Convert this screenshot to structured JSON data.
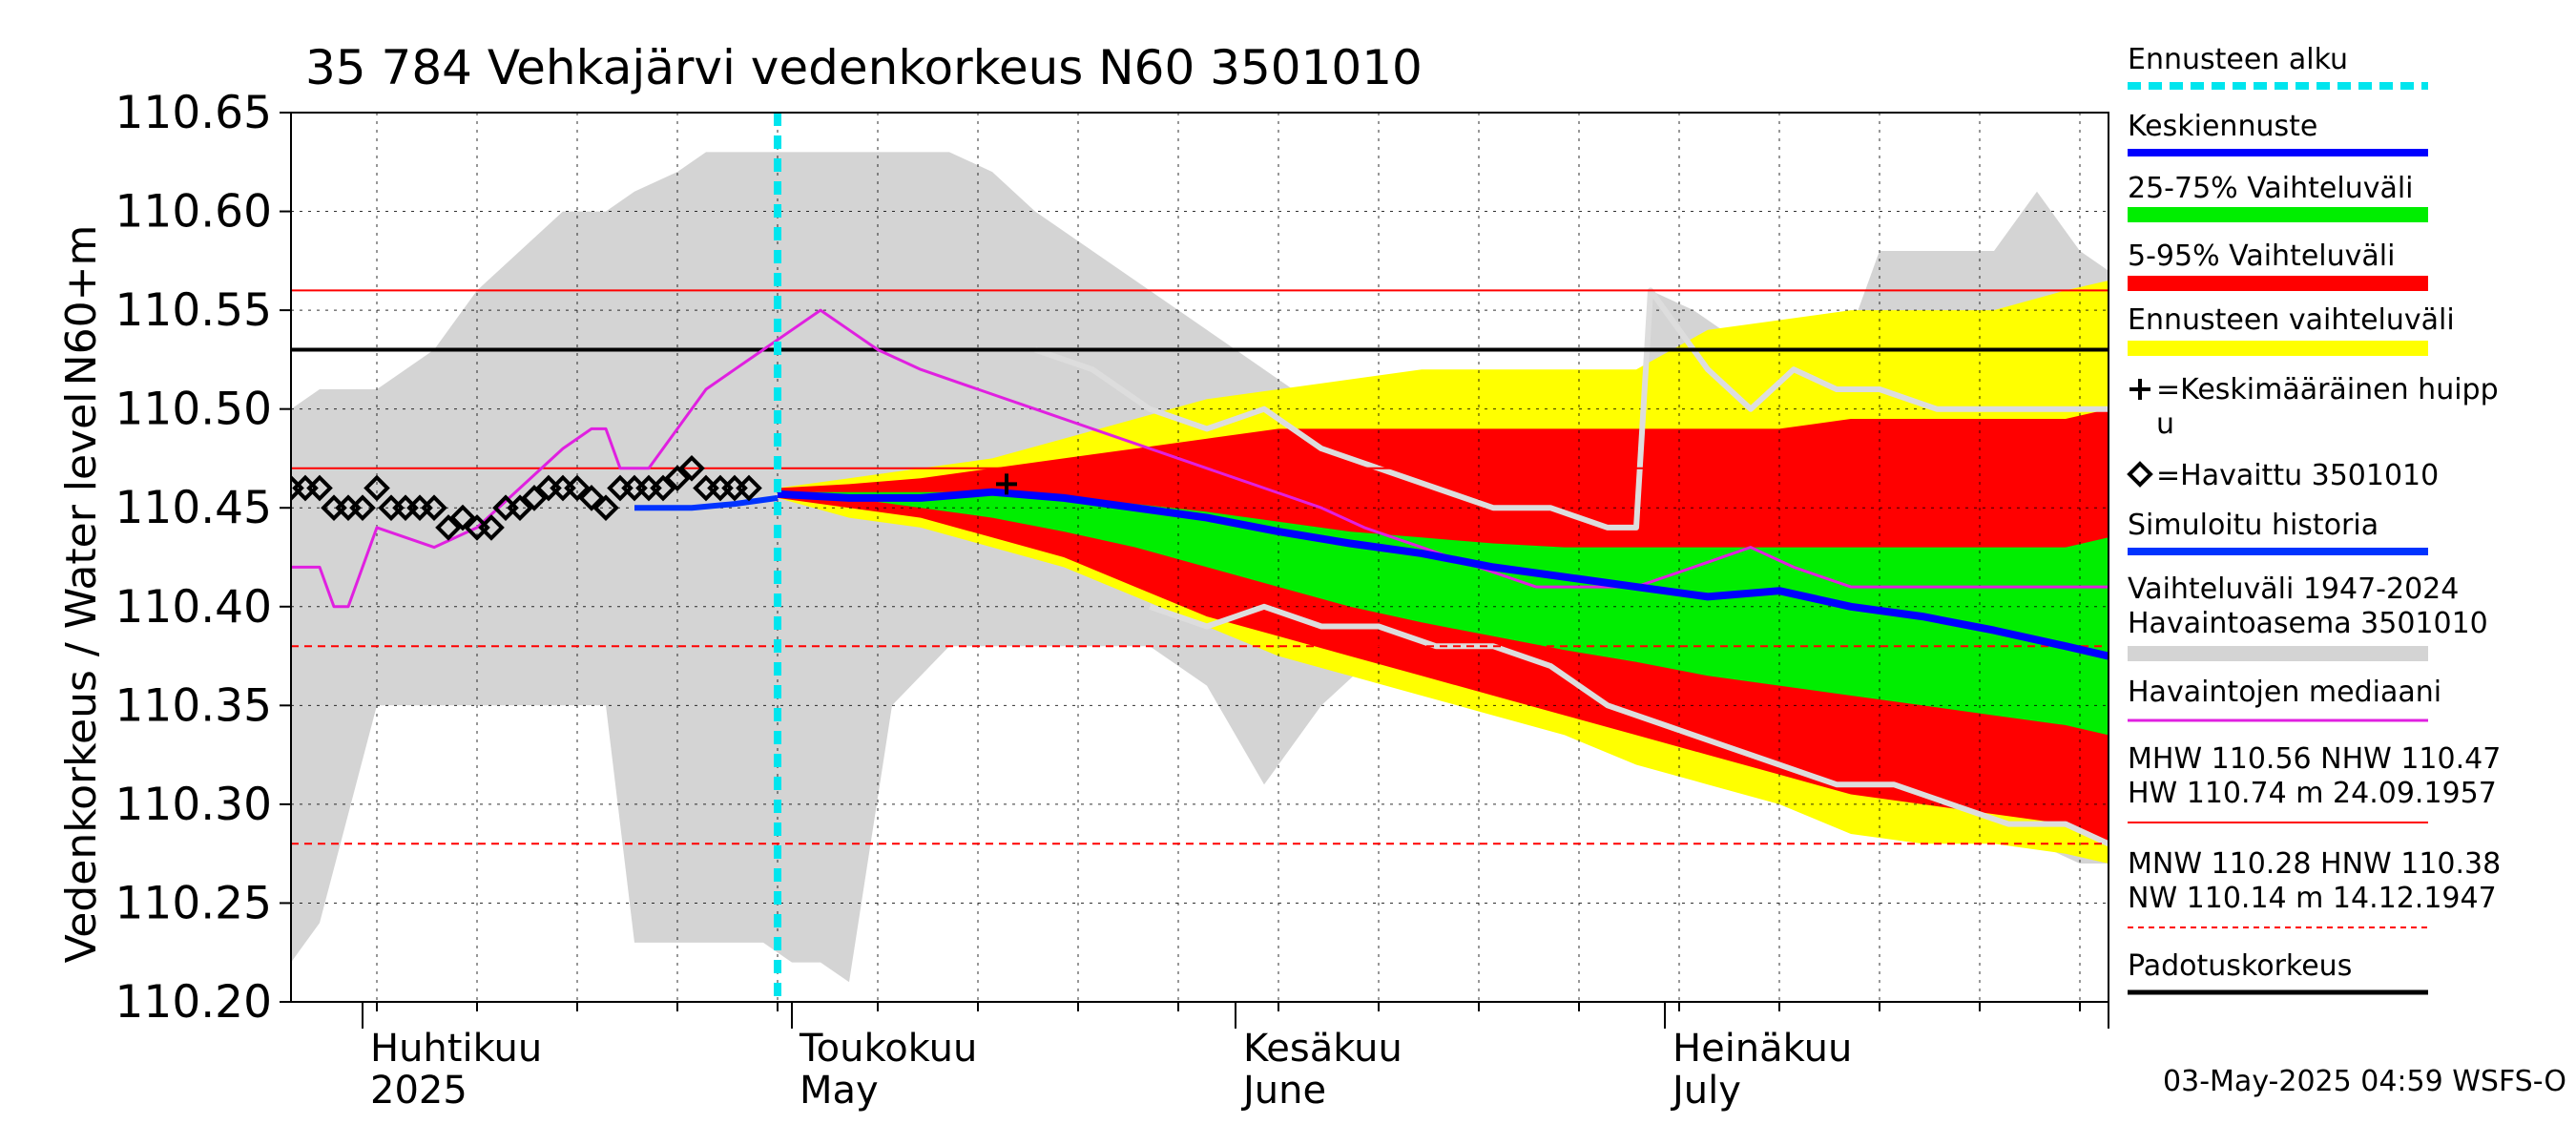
{
  "chart_data": {
    "type": "line",
    "title": "35 784 Vehkajärvi vedenkorkeus N60 3501010",
    "ylabel_top": "N60+m",
    "ylabel": "Vedenkorkeus / Water level",
    "ylim": [
      110.2,
      110.65
    ],
    "yticks": [
      110.2,
      110.25,
      110.3,
      110.35,
      110.4,
      110.45,
      110.5,
      110.55,
      110.6,
      110.65
    ],
    "ytick_labels": [
      "110.20",
      "110.25",
      "110.30",
      "110.35",
      "110.40",
      "110.45",
      "110.50",
      "110.55",
      "110.60",
      "110.65"
    ],
    "xlim": [
      "2025-03-27",
      "2025-08-01"
    ],
    "month_ticks": [
      "2025-04-01",
      "2025-05-01",
      "2025-06-01",
      "2025-07-01",
      "2025-08-01"
    ],
    "month_labels": [
      {
        "date": "2025-04-01",
        "fi": "Huhtikuu",
        "en": "2025"
      },
      {
        "date": "2025-05-01",
        "fi": "Toukokuu",
        "en": "May"
      },
      {
        "date": "2025-06-01",
        "fi": "Kesäkuu",
        "en": "June"
      },
      {
        "date": "2025-07-01",
        "fi": "Heinäkuu",
        "en": "July"
      }
    ],
    "grid": true,
    "legend_position": "right",
    "forecast_start": "2025-04-30",
    "reference_lines": [
      {
        "label": "MHW",
        "value": 110.56,
        "style": "solid",
        "color": "#ff0000"
      },
      {
        "label": "NHW",
        "value": 110.47,
        "style": "solid",
        "color": "#ff0000"
      },
      {
        "label": "MNW",
        "value": 110.28,
        "style": "dashed",
        "color": "#ff0000"
      },
      {
        "label": "HNW",
        "value": 110.38,
        "style": "dashed",
        "color": "#ff0000"
      },
      {
        "label": "Padotuskorkeus",
        "value": 110.53,
        "style": "solid",
        "color": "#000000"
      }
    ],
    "hist_band": {
      "name": "Vaihteluväli 1947-2024 Havaintoasema 3501010",
      "color": "#d4d4d4",
      "x": [
        "2025-03-27",
        "2025-03-29",
        "2025-04-02",
        "2025-04-06",
        "2025-04-09",
        "2025-04-12",
        "2025-04-15",
        "2025-04-18",
        "2025-04-20",
        "2025-04-23",
        "2025-04-25",
        "2025-04-27",
        "2025-04-29",
        "2025-05-01",
        "2025-05-03",
        "2025-05-05",
        "2025-05-08",
        "2025-05-12",
        "2025-05-15",
        "2025-05-18",
        "2025-05-22",
        "2025-05-26",
        "2025-05-30",
        "2025-06-03",
        "2025-06-07",
        "2025-06-10",
        "2025-06-14",
        "2025-06-18",
        "2025-06-22",
        "2025-06-26",
        "2025-06-29",
        "2025-06-30",
        "2025-07-03",
        "2025-07-07",
        "2025-07-10",
        "2025-07-13",
        "2025-07-16",
        "2025-07-20",
        "2025-07-24",
        "2025-07-27",
        "2025-07-30",
        "2025-08-01"
      ],
      "upper": [
        110.5,
        110.51,
        110.51,
        110.53,
        110.56,
        110.58,
        110.6,
        110.6,
        110.61,
        110.62,
        110.63,
        110.63,
        110.63,
        110.63,
        110.63,
        110.63,
        110.63,
        110.63,
        110.62,
        110.6,
        110.58,
        110.56,
        110.54,
        110.52,
        110.5,
        110.5,
        110.49,
        110.48,
        110.48,
        110.47,
        110.47,
        110.56,
        110.55,
        110.53,
        110.52,
        110.52,
        110.58,
        110.58,
        110.58,
        110.61,
        110.58,
        110.57
      ],
      "lower": [
        110.22,
        110.24,
        110.35,
        110.35,
        110.35,
        110.35,
        110.35,
        110.35,
        110.23,
        110.23,
        110.23,
        110.23,
        110.23,
        110.22,
        110.22,
        110.21,
        110.35,
        110.38,
        110.38,
        110.38,
        110.38,
        110.38,
        110.36,
        110.31,
        110.35,
        110.37,
        110.38,
        110.37,
        110.36,
        110.35,
        110.35,
        110.35,
        110.33,
        110.32,
        110.31,
        110.3,
        110.29,
        110.29,
        110.28,
        110.28,
        110.27,
        110.27
      ]
    },
    "forecast_band": {
      "name": "Ennusteen vaihteluväli",
      "color": "#ffff00",
      "x": [
        "2025-04-30",
        "2025-05-05",
        "2025-05-10",
        "2025-05-15",
        "2025-05-20",
        "2025-05-25",
        "2025-05-30",
        "2025-06-04",
        "2025-06-09",
        "2025-06-14",
        "2025-06-19",
        "2025-06-24",
        "2025-06-29",
        "2025-07-04",
        "2025-07-09",
        "2025-07-14",
        "2025-07-19",
        "2025-07-24",
        "2025-07-29",
        "2025-08-01"
      ],
      "upper": [
        110.46,
        110.465,
        110.47,
        110.475,
        110.485,
        110.495,
        110.505,
        110.51,
        110.515,
        110.52,
        110.52,
        110.52,
        110.52,
        110.54,
        110.545,
        110.55,
        110.55,
        110.55,
        110.56,
        110.565
      ],
      "lower": [
        110.455,
        110.445,
        110.44,
        110.43,
        110.42,
        110.405,
        110.39,
        110.375,
        110.365,
        110.355,
        110.345,
        110.335,
        110.32,
        110.31,
        110.3,
        110.285,
        110.28,
        110.28,
        110.275,
        110.27
      ]
    },
    "band_5_95": {
      "name": "5-95% Vaihteluväli",
      "color": "#ff0000",
      "x": [
        "2025-04-30",
        "2025-05-05",
        "2025-05-10",
        "2025-05-15",
        "2025-05-20",
        "2025-05-25",
        "2025-05-30",
        "2025-06-04",
        "2025-06-09",
        "2025-06-14",
        "2025-06-19",
        "2025-06-24",
        "2025-06-29",
        "2025-07-04",
        "2025-07-09",
        "2025-07-14",
        "2025-07-19",
        "2025-07-24",
        "2025-07-29",
        "2025-08-01"
      ],
      "upper": [
        110.46,
        110.462,
        110.465,
        110.47,
        110.475,
        110.48,
        110.485,
        110.49,
        110.49,
        110.49,
        110.49,
        110.49,
        110.49,
        110.49,
        110.49,
        110.495,
        110.495,
        110.495,
        110.495,
        110.5
      ],
      "lower": [
        110.455,
        110.45,
        110.445,
        110.435,
        110.425,
        110.41,
        110.395,
        110.385,
        110.375,
        110.365,
        110.355,
        110.345,
        110.335,
        110.325,
        110.315,
        110.305,
        110.3,
        110.295,
        110.29,
        110.28
      ]
    },
    "band_25_75": {
      "name": "25-75% Vaihteluväli",
      "color": "#00ee00",
      "x": [
        "2025-04-30",
        "2025-05-05",
        "2025-05-10",
        "2025-05-15",
        "2025-05-20",
        "2025-05-25",
        "2025-05-30",
        "2025-06-04",
        "2025-06-09",
        "2025-06-14",
        "2025-06-19",
        "2025-06-24",
        "2025-06-29",
        "2025-07-04",
        "2025-07-09",
        "2025-07-14",
        "2025-07-19",
        "2025-07-24",
        "2025-07-29",
        "2025-08-01"
      ],
      "upper": [
        110.458,
        110.458,
        110.458,
        110.458,
        110.456,
        110.452,
        110.448,
        110.443,
        110.438,
        110.435,
        110.432,
        110.43,
        110.43,
        110.43,
        110.43,
        110.43,
        110.43,
        110.43,
        110.43,
        110.435
      ],
      "lower": [
        110.457,
        110.455,
        110.45,
        110.445,
        110.438,
        110.43,
        110.42,
        110.41,
        110.4,
        110.392,
        110.385,
        110.378,
        110.372,
        110.365,
        110.36,
        110.355,
        110.35,
        110.345,
        110.34,
        110.335
      ]
    },
    "series": [
      {
        "name": "Havaintojen mediaani",
        "color": "#e020e0",
        "x": [
          "2025-03-27",
          "2025-03-29",
          "2025-03-30",
          "2025-03-31",
          "2025-04-02",
          "2025-04-06",
          "2025-04-09",
          "2025-04-12",
          "2025-04-15",
          "2025-04-17",
          "2025-04-18",
          "2025-04-19",
          "2025-04-21",
          "2025-04-23",
          "2025-04-25",
          "2025-04-27",
          "2025-04-29",
          "2025-05-01",
          "2025-05-03",
          "2025-05-05",
          "2025-05-07",
          "2025-05-10",
          "2025-05-14",
          "2025-05-18",
          "2025-05-22",
          "2025-05-26",
          "2025-05-30",
          "2025-06-03",
          "2025-06-07",
          "2025-06-10",
          "2025-06-14",
          "2025-06-18",
          "2025-06-22",
          "2025-06-26",
          "2025-06-29",
          "2025-07-03",
          "2025-07-07",
          "2025-07-10",
          "2025-07-14",
          "2025-07-18",
          "2025-07-22",
          "2025-07-26",
          "2025-07-30",
          "2025-08-01"
        ],
        "y": [
          110.42,
          110.42,
          110.4,
          110.4,
          110.44,
          110.43,
          110.44,
          110.46,
          110.48,
          110.49,
          110.49,
          110.47,
          110.47,
          110.49,
          110.51,
          110.52,
          110.53,
          110.54,
          110.55,
          110.54,
          110.53,
          110.52,
          110.51,
          110.5,
          110.49,
          110.48,
          110.47,
          110.46,
          110.45,
          110.44,
          110.43,
          110.42,
          110.41,
          110.41,
          110.41,
          110.42,
          110.43,
          110.42,
          110.41,
          110.41,
          110.41,
          110.41,
          110.41,
          110.41
        ]
      },
      {
        "name": "Simuloitu historia",
        "color": "#0033ff",
        "x": [
          "2025-04-20",
          "2025-04-24",
          "2025-04-27",
          "2025-04-30"
        ],
        "y": [
          110.45,
          110.45,
          110.452,
          110.455
        ]
      },
      {
        "name": "Keskiennuste",
        "color": "#0000ff",
        "x": [
          "2025-04-30",
          "2025-05-05",
          "2025-05-10",
          "2025-05-15",
          "2025-05-20",
          "2025-05-25",
          "2025-05-30",
          "2025-06-04",
          "2025-06-09",
          "2025-06-14",
          "2025-06-19",
          "2025-06-24",
          "2025-06-29",
          "2025-07-04",
          "2025-07-09",
          "2025-07-14",
          "2025-07-19",
          "2025-07-24",
          "2025-07-29",
          "2025-08-01"
        ],
        "y": [
          110.457,
          110.455,
          110.455,
          110.458,
          110.455,
          110.45,
          110.445,
          110.438,
          110.432,
          110.427,
          110.42,
          110.415,
          110.41,
          110.405,
          110.408,
          110.4,
          110.395,
          110.388,
          110.38,
          110.375
        ]
      },
      {
        "name": "hist_trace",
        "color": "#dddddd",
        "x": [
          "2025-05-18",
          "2025-05-22",
          "2025-05-26",
          "2025-05-30",
          "2025-06-03",
          "2025-06-07",
          "2025-06-11",
          "2025-06-15",
          "2025-06-19",
          "2025-06-23",
          "2025-06-27",
          "2025-06-29",
          "2025-06-30",
          "2025-07-04",
          "2025-07-07",
          "2025-07-10",
          "2025-07-13",
          "2025-07-16",
          "2025-07-20",
          "2025-07-24",
          "2025-07-28",
          "2025-08-01"
        ],
        "y": [
          110.53,
          110.52,
          110.5,
          110.49,
          110.5,
          110.48,
          110.47,
          110.46,
          110.45,
          110.45,
          110.44,
          110.44,
          110.56,
          110.52,
          110.5,
          110.52,
          110.51,
          110.51,
          110.5,
          110.5,
          110.5,
          110.5
        ]
      },
      {
        "name": "hist_trace_2",
        "color": "#dddddd",
        "x": [
          "2025-05-26",
          "2025-05-30",
          "2025-06-03",
          "2025-06-07",
          "2025-06-11",
          "2025-06-15",
          "2025-06-19",
          "2025-06-23",
          "2025-06-27",
          "2025-07-01",
          "2025-07-05",
          "2025-07-09",
          "2025-07-13",
          "2025-07-17",
          "2025-07-21",
          "2025-07-25",
          "2025-07-29",
          "2025-08-01"
        ],
        "y": [
          110.4,
          110.39,
          110.4,
          110.39,
          110.39,
          110.38,
          110.38,
          110.37,
          110.35,
          110.34,
          110.33,
          110.32,
          110.31,
          110.31,
          110.3,
          110.29,
          110.29,
          110.28
        ]
      }
    ],
    "observed": {
      "name": "Havaittu 3501010",
      "x": [
        "2025-03-27",
        "2025-03-28",
        "2025-03-29",
        "2025-03-30",
        "2025-03-31",
        "2025-04-01",
        "2025-04-02",
        "2025-04-03",
        "2025-04-04",
        "2025-04-05",
        "2025-04-06",
        "2025-04-07",
        "2025-04-08",
        "2025-04-09",
        "2025-04-10",
        "2025-04-11",
        "2025-04-12",
        "2025-04-13",
        "2025-04-14",
        "2025-04-15",
        "2025-04-16",
        "2025-04-17",
        "2025-04-18",
        "2025-04-19",
        "2025-04-20",
        "2025-04-21",
        "2025-04-22",
        "2025-04-23",
        "2025-04-24",
        "2025-04-25",
        "2025-04-26",
        "2025-04-27",
        "2025-04-28"
      ],
      "y": [
        110.46,
        110.46,
        110.46,
        110.45,
        110.45,
        110.45,
        110.46,
        110.45,
        110.45,
        110.45,
        110.45,
        110.44,
        110.445,
        110.44,
        110.44,
        110.45,
        110.45,
        110.455,
        110.46,
        110.46,
        110.46,
        110.455,
        110.45,
        110.46,
        110.46,
        110.46,
        110.46,
        110.465,
        110.47,
        110.46,
        110.46,
        110.46,
        110.46
      ]
    },
    "peak_marker": {
      "name": "Keskimääräinen huippu",
      "x": "2025-05-16",
      "y": 110.462
    },
    "legend_entries": [
      {
        "key": "forecast_start",
        "label": "Ennusteen alku",
        "swatch": "dashed",
        "color": "#00e5ee"
      },
      {
        "key": "mean",
        "label": "Keskiennuste",
        "swatch": "line",
        "color": "#0000ff"
      },
      {
        "key": "b2575",
        "label": "25-75% Vaihteluväli",
        "swatch": "band",
        "color": "#00ee00"
      },
      {
        "key": "b595",
        "label": "5-95% Vaihteluväli",
        "swatch": "band",
        "color": "#ff0000"
      },
      {
        "key": "fcband",
        "label": "Ennusteen vaihteluväli",
        "swatch": "band",
        "color": "#ffff00"
      },
      {
        "key": "peak",
        "label": "=Keskimääräinen huipp",
        "label2": "u",
        "swatch": "plus",
        "color": "#000000"
      },
      {
        "key": "obs",
        "label": "=Havaittu 3501010",
        "swatch": "diamond",
        "color": "#000000"
      },
      {
        "key": "sim",
        "label": "Simuloitu historia",
        "swatch": "line",
        "color": "#0033ff"
      },
      {
        "key": "hist",
        "label": "Vaihteluväli 1947-2024",
        "label2": " Havaintoasema 3501010",
        "swatch": "band",
        "color": "#d4d4d4"
      },
      {
        "key": "median",
        "label": "Havaintojen mediaani",
        "swatch": "thin",
        "color": "#e020e0"
      },
      {
        "key": "hw",
        "label": "MHW 110.56 NHW 110.47",
        "label2": "HW 110.74 m 24.09.1957",
        "swatch": "thinred",
        "color": "#ff0000"
      },
      {
        "key": "nw",
        "label": "MNW 110.28 HNW 110.38",
        "label2": "NW 110.14 m 14.12.1947",
        "swatch": "dashedred",
        "color": "#ff0000"
      },
      {
        "key": "pad",
        "label": "Padotuskorkeus",
        "swatch": "thick",
        "color": "#000000"
      }
    ],
    "footer": "03-May-2025 04:59 WSFS-O"
  }
}
